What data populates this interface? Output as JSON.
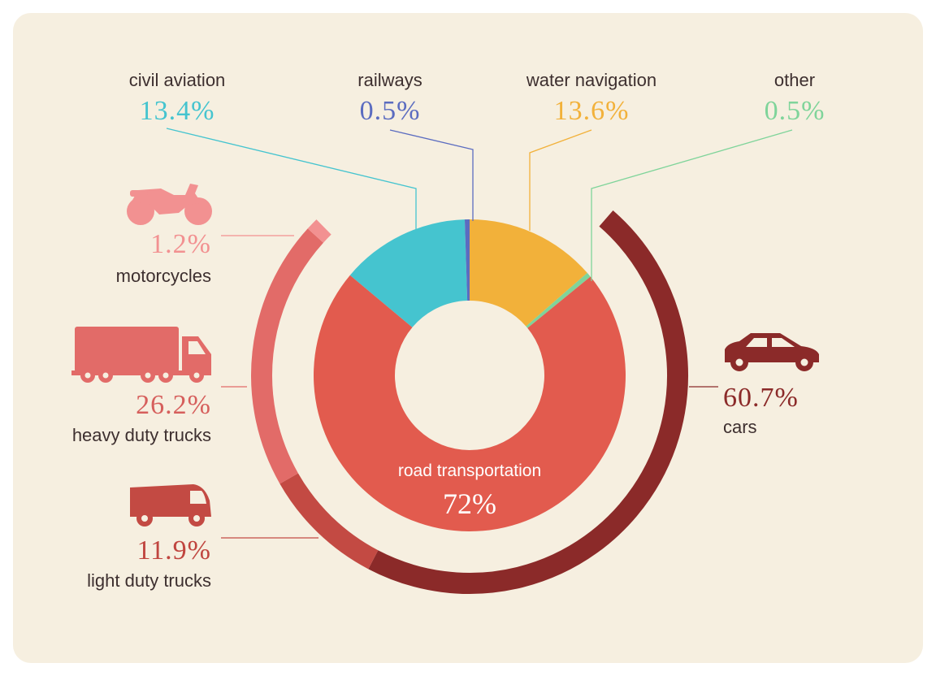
{
  "chart_data": {
    "type": "pie",
    "title": "",
    "inner": [
      {
        "name": "civil aviation",
        "label": "13.4%",
        "value": 13.4,
        "color": "#45c4cf"
      },
      {
        "name": "railways",
        "label": "0.5%",
        "value": 0.5,
        "color": "#5b6cc0"
      },
      {
        "name": "water navigation",
        "label": "13.6%",
        "value": 13.6,
        "color": "#f2b13a"
      },
      {
        "name": "other",
        "label": "0.5%",
        "value": 0.5,
        "color": "#7fd49a"
      },
      {
        "name": "road transportation",
        "label": "72%",
        "value": 72,
        "color": "#e25b4e"
      }
    ],
    "outer": [
      {
        "name": "cars",
        "label": "60.7%",
        "value": 60.7,
        "color": "#8b2a29"
      },
      {
        "name": "light duty trucks",
        "label": "11.9%",
        "value": 11.9,
        "color": "#c34a43"
      },
      {
        "name": "heavy duty trucks",
        "label": "26.2%",
        "value": 26.2,
        "color": "#e26b68"
      },
      {
        "name": "motorcycles",
        "label": "1.2%",
        "value": 1.2,
        "color": "#f29191"
      }
    ]
  },
  "colors": {
    "background": "#f6efe0",
    "label_text": "#3d2f2f",
    "cars_text": "#8b2a29",
    "light_trucks_text": "#c0453f",
    "heavy_trucks_text": "#d65f5c",
    "motorcycles_text": "#f29191"
  },
  "icons": [
    "motorcycle-icon",
    "heavy-truck-icon",
    "light-truck-icon",
    "car-icon"
  ]
}
